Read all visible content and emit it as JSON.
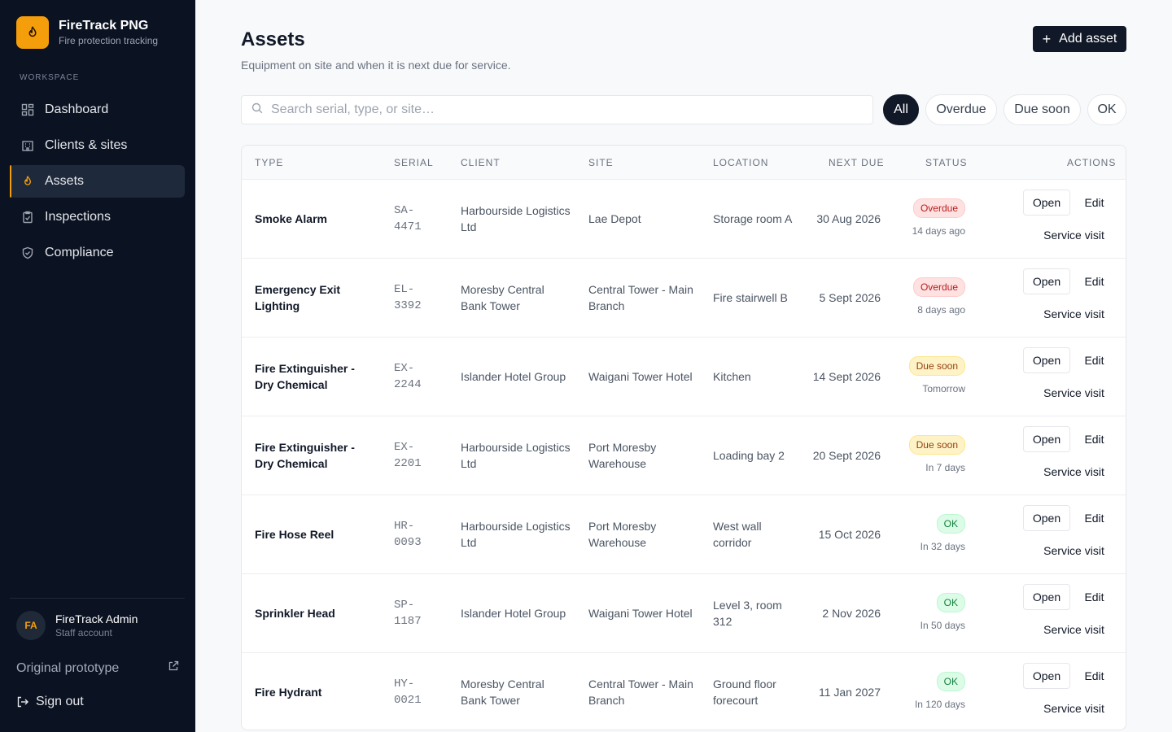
{
  "brand": {
    "name": "FireTrack PNG",
    "subtitle": "Fire protection tracking",
    "logo_icon": "flame-icon",
    "accent": "#f59e0b"
  },
  "sidebar": {
    "section_label": "WORKSPACE",
    "items": [
      {
        "label": "Dashboard",
        "icon": "grid-icon",
        "active": false
      },
      {
        "label": "Clients & sites",
        "icon": "building-icon",
        "active": false
      },
      {
        "label": "Assets",
        "icon": "flame-icon",
        "active": true
      },
      {
        "label": "Inspections",
        "icon": "clipboard-icon",
        "active": false
      },
      {
        "label": "Compliance",
        "icon": "shield-check-icon",
        "active": false
      }
    ],
    "user": {
      "initials": "FA",
      "name": "FireTrack Admin",
      "role": "Staff account"
    },
    "prototype_link": "Original prototype",
    "sign_out": "Sign out"
  },
  "page": {
    "title": "Assets",
    "subtitle": "Equipment on site and when it is next due for service.",
    "add_button": "Add asset"
  },
  "search": {
    "placeholder": "Search serial, type, or site…",
    "value": ""
  },
  "filters": [
    {
      "label": "All",
      "active": true
    },
    {
      "label": "Overdue",
      "active": false
    },
    {
      "label": "Due soon",
      "active": false
    },
    {
      "label": "OK",
      "active": false
    }
  ],
  "table": {
    "columns": [
      "Type",
      "Serial",
      "Client",
      "Site",
      "Location",
      "Next due",
      "Status",
      "Actions"
    ],
    "actions": {
      "open": "Open",
      "edit": "Edit",
      "service_visit": "Service visit"
    },
    "rows": [
      {
        "type": "Smoke Alarm",
        "serial": "SA-4471",
        "client": "Harbourside Logistics Ltd",
        "site": "Lae Depot",
        "location": "Storage room A",
        "next_due": "30 Aug 2026",
        "status": "Overdue",
        "status_kind": "overdue",
        "relative": "14 days ago"
      },
      {
        "type": "Emergency Exit Lighting",
        "serial": "EL-3392",
        "client": "Moresby Central Bank Tower",
        "site": "Central Tower - Main Branch",
        "location": "Fire stairwell B",
        "next_due": "5 Sept 2026",
        "status": "Overdue",
        "status_kind": "overdue",
        "relative": "8 days ago"
      },
      {
        "type": "Fire Extinguisher - Dry Chemical",
        "serial": "EX-2244",
        "client": "Islander Hotel Group",
        "site": "Waigani Tower Hotel",
        "location": "Kitchen",
        "next_due": "14 Sept 2026",
        "status": "Due soon",
        "status_kind": "soon",
        "relative": "Tomorrow"
      },
      {
        "type": "Fire Extinguisher - Dry Chemical",
        "serial": "EX-2201",
        "client": "Harbourside Logistics Ltd",
        "site": "Port Moresby Warehouse",
        "location": "Loading bay 2",
        "next_due": "20 Sept 2026",
        "status": "Due soon",
        "status_kind": "soon",
        "relative": "In 7 days"
      },
      {
        "type": "Fire Hose Reel",
        "serial": "HR-0093",
        "client": "Harbourside Logistics Ltd",
        "site": "Port Moresby Warehouse",
        "location": "West wall corridor",
        "next_due": "15 Oct 2026",
        "status": "OK",
        "status_kind": "ok",
        "relative": "In 32 days"
      },
      {
        "type": "Sprinkler Head",
        "serial": "SP-1187",
        "client": "Islander Hotel Group",
        "site": "Waigani Tower Hotel",
        "location": "Level 3, room 312",
        "next_due": "2 Nov 2026",
        "status": "OK",
        "status_kind": "ok",
        "relative": "In 50 days"
      },
      {
        "type": "Fire Hydrant",
        "serial": "HY-0021",
        "client": "Moresby Central Bank Tower",
        "site": "Central Tower - Main Branch",
        "location": "Ground floor forecourt",
        "next_due": "11 Jan 2027",
        "status": "OK",
        "status_kind": "ok",
        "relative": "In 120 days"
      }
    ]
  }
}
